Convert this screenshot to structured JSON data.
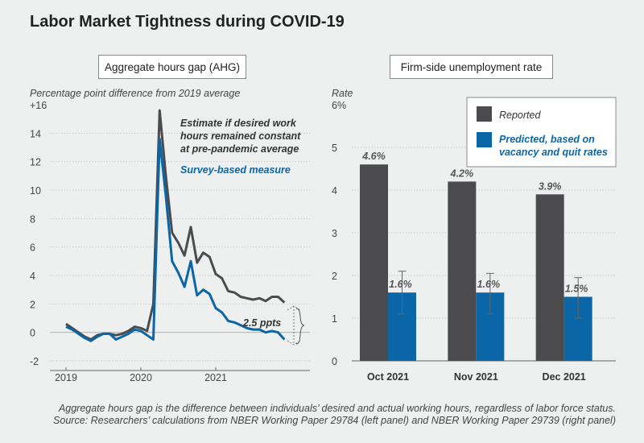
{
  "title": "Labor Market Tightness during COVID-19",
  "notes": {
    "line1": "Aggregate hours gap is the difference between individuals’ desired and actual working hours, regardless of labor force status.",
    "line2": "Source: Researchers’ calculations from NBER Working Paper 29784 (left panel) and NBER Working Paper 29739 (right panel)"
  },
  "colors": {
    "dark": "#4b4b4d",
    "blue": "#0a66a6",
    "grid": "#c9c9c9",
    "text": "#444444"
  },
  "chart_data": [
    {
      "type": "line",
      "title": "Aggregate hours gap (AHG)",
      "ylabel": "Percentage point difference from 2019 average",
      "ylim": [
        -2,
        16
      ],
      "yticks": [
        -2,
        0,
        2,
        4,
        6,
        8,
        10,
        12,
        14,
        16
      ],
      "ytick_labels": [
        "-2",
        "0",
        "2",
        "4",
        "6",
        "8",
        "10",
        "12",
        "14",
        "+16"
      ],
      "xlim": [
        2019,
        2021.97
      ],
      "xticks": [
        2019,
        2020,
        2021
      ],
      "xtick_labels": [
        "2019",
        "2020",
        "2021"
      ],
      "series": [
        {
          "name": "Estimate if desired work hours remained constant at pre-pandemic average",
          "color": "#4b4b4d",
          "x": [
            2019.0,
            2019.083,
            2019.167,
            2019.25,
            2019.333,
            2019.417,
            2019.5,
            2019.583,
            2019.667,
            2019.75,
            2019.833,
            2019.917,
            2020.0,
            2020.083,
            2020.167,
            2020.25,
            2020.333,
            2020.417,
            2020.5,
            2020.583,
            2020.667,
            2020.75,
            2020.833,
            2020.917,
            2021.0,
            2021.083,
            2021.167,
            2021.25,
            2021.333,
            2021.417,
            2021.5,
            2021.583,
            2021.667,
            2021.75,
            2021.833,
            2021.917
          ],
          "values": [
            0.6,
            0.3,
            0.0,
            -0.3,
            -0.5,
            -0.2,
            -0.1,
            -0.1,
            -0.2,
            -0.1,
            0.1,
            0.4,
            0.3,
            0.1,
            2.0,
            15.6,
            11.0,
            7.0,
            6.3,
            5.4,
            7.4,
            4.9,
            5.6,
            5.3,
            4.1,
            3.8,
            2.9,
            2.8,
            2.5,
            2.4,
            2.3,
            2.4,
            2.2,
            2.5,
            2.5,
            2.1
          ]
        },
        {
          "name": "Survey-based measure",
          "color": "#0a66a6",
          "x": [
            2019.0,
            2019.083,
            2019.167,
            2019.25,
            2019.333,
            2019.417,
            2019.5,
            2019.583,
            2019.667,
            2019.75,
            2019.833,
            2019.917,
            2020.0,
            2020.083,
            2020.167,
            2020.25,
            2020.333,
            2020.417,
            2020.5,
            2020.583,
            2020.667,
            2020.75,
            2020.833,
            2020.917,
            2021.0,
            2021.083,
            2021.167,
            2021.25,
            2021.333,
            2021.417,
            2021.5,
            2021.583,
            2021.667,
            2021.75,
            2021.833,
            2021.917
          ],
          "values": [
            0.4,
            0.2,
            -0.1,
            -0.4,
            -0.6,
            -0.3,
            -0.1,
            -0.1,
            -0.5,
            -0.3,
            -0.1,
            0.2,
            0.1,
            -0.2,
            -0.5,
            13.6,
            9.6,
            5.0,
            4.2,
            3.2,
            5.0,
            2.6,
            3.0,
            2.7,
            1.7,
            1.4,
            0.8,
            0.7,
            0.5,
            0.3,
            0.2,
            0.2,
            0.0,
            0.1,
            0.0,
            -0.5
          ]
        }
      ],
      "annotation": "2.5 ppts"
    },
    {
      "type": "bar",
      "title": "Firm-side unemployment rate",
      "ylabel": "Rate",
      "ylim": [
        0,
        6
      ],
      "yticks": [
        0,
        1,
        2,
        3,
        4,
        5,
        6
      ],
      "ytick_labels": [
        "0",
        "1",
        "2",
        "3",
        "4",
        "5",
        "6%"
      ],
      "categories": [
        "Oct 2021",
        "Nov 2021",
        "Dec 2021"
      ],
      "legend_position": "top-right",
      "series": [
        {
          "name": "Reported",
          "color": "#4b4b4d",
          "values": [
            4.6,
            4.2,
            3.9
          ],
          "labels": [
            "4.6%",
            "4.2%",
            "3.9%"
          ]
        },
        {
          "name": "Predicted, based on vacancy and quit rates",
          "color": "#0a66a6",
          "values": [
            1.6,
            1.6,
            1.5
          ],
          "labels": [
            "1.6%",
            "1.6%",
            "1.5%"
          ],
          "error_low": [
            1.1,
            1.1,
            1.0
          ],
          "error_high": [
            2.1,
            2.05,
            1.95
          ]
        }
      ]
    }
  ]
}
